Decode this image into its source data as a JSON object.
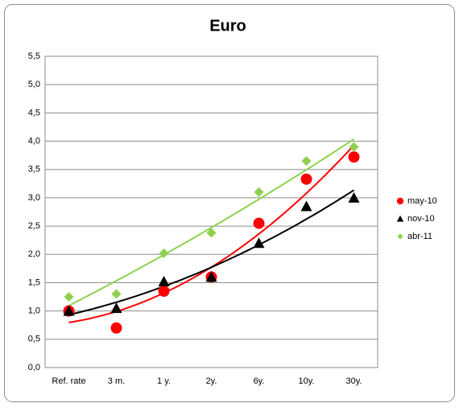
{
  "chart_data": {
    "type": "scatter",
    "title": "Euro",
    "categories": [
      "Ref. rate",
      "3 m.",
      "1 y.",
      "2y.",
      "6y.",
      "10y.",
      "30y."
    ],
    "series": [
      {
        "name": "may-10",
        "color": "#ff0000",
        "marker": "circle",
        "values": [
          1.0,
          0.7,
          1.35,
          1.6,
          2.55,
          3.33,
          3.72
        ]
      },
      {
        "name": "nov-10",
        "color": "#000000",
        "marker": "triangle",
        "values": [
          1.0,
          1.05,
          1.52,
          1.6,
          2.2,
          2.85,
          3.0
        ]
      },
      {
        "name": "abr-11",
        "color": "#8fd14f",
        "marker": "diamond",
        "values": [
          1.25,
          1.3,
          2.02,
          2.38,
          3.1,
          3.65,
          3.9
        ]
      }
    ],
    "trendline": "polynomial",
    "ylim": [
      0,
      5.5
    ],
    "yticks": [
      {
        "value": 0,
        "label": "0,0"
      },
      {
        "value": 0.5,
        "label": "0,5"
      },
      {
        "value": 1,
        "label": "1,0"
      },
      {
        "value": 1.5,
        "label": "1,5"
      },
      {
        "value": 2,
        "label": "2,0"
      },
      {
        "value": 2.5,
        "label": "2,5"
      },
      {
        "value": 3,
        "label": "3,0"
      },
      {
        "value": 3.5,
        "label": "3,5"
      },
      {
        "value": 4,
        "label": "4,0"
      },
      {
        "value": 4.5,
        "label": "4,5"
      },
      {
        "value": 5,
        "label": "5,0"
      },
      {
        "value": 5.5,
        "label": "5,5"
      }
    ],
    "grid": true,
    "legend": "right"
  }
}
